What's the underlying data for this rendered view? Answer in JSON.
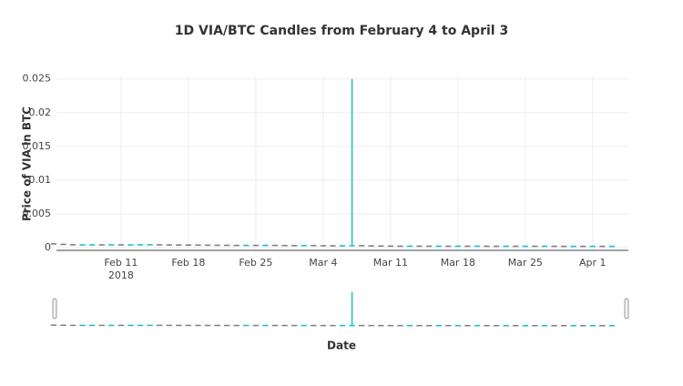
{
  "chart_data": {
    "type": "candlestick",
    "title": "1D VIA/BTC Candles from February 4 to April 3",
    "x_label": "Date",
    "y_label": "Price of VIA in BTC",
    "x": [
      "2018-02-04",
      "2018-02-05",
      "2018-02-06",
      "2018-02-07",
      "2018-02-08",
      "2018-02-09",
      "2018-02-10",
      "2018-02-11",
      "2018-02-12",
      "2018-02-13",
      "2018-02-14",
      "2018-02-15",
      "2018-02-16",
      "2018-02-17",
      "2018-02-18",
      "2018-02-19",
      "2018-02-20",
      "2018-02-21",
      "2018-02-22",
      "2018-02-23",
      "2018-02-24",
      "2018-02-25",
      "2018-02-26",
      "2018-02-27",
      "2018-02-28",
      "2018-03-01",
      "2018-03-02",
      "2018-03-03",
      "2018-03-04",
      "2018-03-05",
      "2018-03-06",
      "2018-03-07",
      "2018-03-08",
      "2018-03-09",
      "2018-03-10",
      "2018-03-11",
      "2018-03-12",
      "2018-03-13",
      "2018-03-14",
      "2018-03-15",
      "2018-03-16",
      "2018-03-17",
      "2018-03-18",
      "2018-03-19",
      "2018-03-20",
      "2018-03-21",
      "2018-03-22",
      "2018-03-23",
      "2018-03-24",
      "2018-03-25",
      "2018-03-26",
      "2018-03-27",
      "2018-03-28",
      "2018-03-29",
      "2018-03-30",
      "2018-03-31",
      "2018-04-01",
      "2018-04-02",
      "2018-04-03"
    ],
    "open": [
      0.00065,
      0.00058,
      0.00052,
      0.00049,
      0.0005,
      0.00051,
      0.0005,
      0.00051,
      0.00049,
      0.0005,
      0.00051,
      0.00052,
      0.0005,
      0.00049,
      0.00048,
      0.00047,
      0.00046,
      0.00045,
      0.00044,
      0.00043,
      0.00042,
      0.00043,
      0.00042,
      0.00043,
      0.00041,
      0.0004,
      0.00039,
      0.0004,
      0.00038,
      0.00037,
      0.00036,
      0.00037,
      0.00038,
      0.00035,
      0.00034,
      0.00033,
      0.00032,
      0.00031,
      0.00032,
      0.00031,
      0.0003,
      0.00031,
      0.0003,
      0.00031,
      0.0003,
      0.00031,
      0.0003,
      0.00029,
      0.0003,
      0.00029,
      0.0003,
      0.00029,
      0.0003,
      0.00029,
      0.00028,
      0.00029,
      0.00028,
      0.00029,
      0.00028
    ],
    "high": [
      0.00068,
      0.0006,
      0.00054,
      0.00052,
      0.00053,
      0.00053,
      0.00053,
      0.00053,
      0.00052,
      0.00053,
      0.00054,
      0.00054,
      0.00052,
      0.00051,
      0.0005,
      0.00049,
      0.00048,
      0.00047,
      0.00046,
      0.00045,
      0.00045,
      0.00045,
      0.00045,
      0.00045,
      0.00043,
      0.00042,
      0.00042,
      0.00042,
      0.0004,
      0.00039,
      0.00039,
      0.025,
      0.0004,
      0.00037,
      0.00036,
      0.00035,
      0.00034,
      0.00034,
      0.00034,
      0.00033,
      0.00033,
      0.00033,
      0.00033,
      0.00033,
      0.00033,
      0.00033,
      0.00032,
      0.00032,
      0.00032,
      0.00032,
      0.00032,
      0.00032,
      0.00032,
      0.00031,
      0.00031,
      0.00031,
      0.00031,
      0.00031,
      0.00031
    ],
    "low": [
      0.00055,
      0.0005,
      0.00047,
      0.00047,
      0.00048,
      0.00048,
      0.00048,
      0.00047,
      0.00047,
      0.00048,
      0.00049,
      0.00048,
      0.00047,
      0.00046,
      0.00045,
      0.00044,
      0.00043,
      0.00042,
      0.00041,
      0.0004,
      0.0004,
      0.0004,
      0.0004,
      0.00039,
      0.00038,
      0.00037,
      0.00037,
      0.00036,
      0.00035,
      0.00034,
      0.00034,
      0.00035,
      0.00033,
      0.00032,
      0.00031,
      0.0003,
      0.00029,
      0.00029,
      0.00029,
      0.00028,
      0.00028,
      0.00028,
      0.00028,
      0.00028,
      0.00028,
      0.00028,
      0.00027,
      0.00027,
      0.00027,
      0.00027,
      0.00027,
      0.00027,
      0.00027,
      0.00026,
      0.00026,
      0.00026,
      0.00026,
      0.00026,
      0.00026
    ],
    "close": [
      0.00058,
      0.00052,
      0.00049,
      0.0005,
      0.00051,
      0.0005,
      0.00051,
      0.00049,
      0.0005,
      0.00051,
      0.00052,
      0.0005,
      0.00049,
      0.00048,
      0.00047,
      0.00046,
      0.00045,
      0.00044,
      0.00043,
      0.00042,
      0.00043,
      0.00042,
      0.00043,
      0.00041,
      0.0004,
      0.00039,
      0.0004,
      0.00038,
      0.00037,
      0.00036,
      0.00037,
      0.00038,
      0.00035,
      0.00034,
      0.00033,
      0.00032,
      0.00031,
      0.00032,
      0.00031,
      0.0003,
      0.00031,
      0.0003,
      0.00031,
      0.0003,
      0.00031,
      0.0003,
      0.00029,
      0.0003,
      0.00029,
      0.0003,
      0.00029,
      0.0003,
      0.00029,
      0.00028,
      0.00029,
      0.00028,
      0.00029,
      0.00028,
      0.00029
    ],
    "increasing_color": "#17becf",
    "decreasing_color": "#7f7f7f",
    "xlim": [
      "2018-02-04T07:00",
      "2018-04-04T17:00"
    ],
    "xticks": [
      {
        "value": "2018-02-11",
        "label": "Feb 11"
      },
      {
        "value": "2018-02-18",
        "label": "Feb 18"
      },
      {
        "value": "2018-02-25",
        "label": "Feb 25"
      },
      {
        "value": "2018-03-04",
        "label": "Mar 4"
      },
      {
        "value": "2018-03-11",
        "label": "Mar 11"
      },
      {
        "value": "2018-03-18",
        "label": "Mar 18"
      },
      {
        "value": "2018-03-25",
        "label": "Mar 25"
      },
      {
        "value": "2018-04-01",
        "label": "Apr 1"
      }
    ],
    "xtick_year": "2018",
    "ylim": [
      -0.0004,
      0.0255
    ],
    "yticks": [
      0,
      0.005,
      0.01,
      0.015,
      0.02,
      0.025
    ],
    "grid": true,
    "rangeslider": true
  }
}
